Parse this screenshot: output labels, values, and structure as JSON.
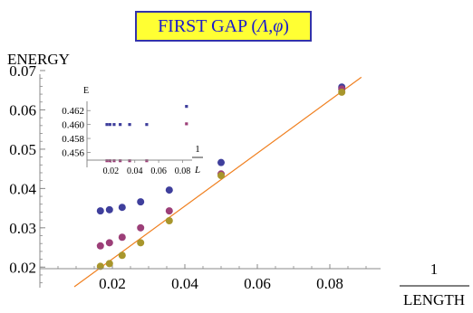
{
  "chart_data": {
    "type": "scatter",
    "title": "FIRST GAP (Λ, φ)",
    "title_parts": {
      "prefix": "FIRST GAP (",
      "sym1": "Λ",
      "sep": ", ",
      "sym2": "φ",
      "suffix": ")"
    },
    "ylabel": "ENERGY",
    "xlabel": {
      "numerator": "1",
      "denominator": "LENGTH"
    },
    "xlim": [
      0.0,
      0.094
    ],
    "ylim": [
      0.015,
      0.07
    ],
    "xticks": [
      "0.02",
      "0.04",
      "0.06",
      "0.08"
    ],
    "xtick_values": [
      0.02,
      0.04,
      0.06,
      0.08
    ],
    "yticks": [
      "0.02",
      "0.03",
      "0.04",
      "0.05",
      "0.06",
      "0.07"
    ],
    "ytick_values": [
      0.02,
      0.03,
      0.04,
      0.05,
      0.06,
      0.07
    ],
    "series": [
      {
        "color": "#3f3f9c",
        "points": [
          {
            "x": 0.0167,
            "y": 0.0343
          },
          {
            "x": 0.0192,
            "y": 0.0346
          },
          {
            "x": 0.0227,
            "y": 0.0352
          },
          {
            "x": 0.0278,
            "y": 0.0366
          },
          {
            "x": 0.0357,
            "y": 0.0396
          },
          {
            "x": 0.05,
            "y": 0.0466
          },
          {
            "x": 0.0833,
            "y": 0.0658
          }
        ]
      },
      {
        "color": "#9c3f78",
        "points": [
          {
            "x": 0.0167,
            "y": 0.0254
          },
          {
            "x": 0.0192,
            "y": 0.0262
          },
          {
            "x": 0.0227,
            "y": 0.0276
          },
          {
            "x": 0.0278,
            "y": 0.03
          },
          {
            "x": 0.0357,
            "y": 0.0343
          },
          {
            "x": 0.05,
            "y": 0.0437
          },
          {
            "x": 0.0833,
            "y": 0.0653
          }
        ]
      },
      {
        "color": "#a8962c",
        "points": [
          {
            "x": 0.0167,
            "y": 0.0202
          },
          {
            "x": 0.0192,
            "y": 0.0209
          },
          {
            "x": 0.0227,
            "y": 0.023
          },
          {
            "x": 0.0278,
            "y": 0.0262
          },
          {
            "x": 0.0357,
            "y": 0.0318
          },
          {
            "x": 0.05,
            "y": 0.0433
          },
          {
            "x": 0.0833,
            "y": 0.0645
          }
        ]
      }
    ],
    "fit_line": {
      "color": "#f08020",
      "x": [
        0.0095,
        0.0887
      ],
      "y": [
        0.015,
        0.0683
      ]
    },
    "inset": {
      "type": "scatter",
      "ylabel": "E",
      "xlabel": {
        "numerator": "1",
        "denominator": "L"
      },
      "xlim": [
        0.0,
        0.088
      ],
      "ylim": [
        0.4545,
        0.4632
      ],
      "xticks": [
        "0.02",
        "0.04",
        "0.06",
        "0.08"
      ],
      "xtick_values": [
        0.02,
        0.04,
        0.06,
        0.08
      ],
      "yticks": [
        "0.456",
        "0.458",
        "0.460",
        "0.462"
      ],
      "ytick_values": [
        0.456,
        0.458,
        0.46,
        0.462
      ],
      "series": [
        {
          "color": "#3f3f9c",
          "points": [
            {
              "x": 0.0167,
              "y": 0.46
            },
            {
              "x": 0.0192,
              "y": 0.46
            },
            {
              "x": 0.0227,
              "y": 0.46
            },
            {
              "x": 0.0278,
              "y": 0.46
            },
            {
              "x": 0.0357,
              "y": 0.46
            },
            {
              "x": 0.05,
              "y": 0.46
            },
            {
              "x": 0.0833,
              "y": 0.4626
            }
          ]
        },
        {
          "color": "#9c3f78",
          "points": [
            {
              "x": 0.0167,
              "y": 0.4548
            },
            {
              "x": 0.0192,
              "y": 0.4548
            },
            {
              "x": 0.0227,
              "y": 0.4548
            },
            {
              "x": 0.0278,
              "y": 0.4548
            },
            {
              "x": 0.0357,
              "y": 0.4548
            },
            {
              "x": 0.05,
              "y": 0.4548
            },
            {
              "x": 0.0833,
              "y": 0.4601
            }
          ]
        }
      ]
    }
  }
}
